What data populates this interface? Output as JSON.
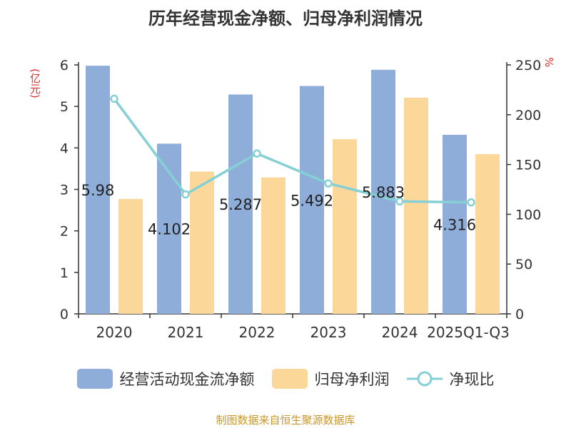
{
  "title": "历年经营现金净额、归母净利润情况",
  "units": {
    "left": "(亿元)",
    "right": "%"
  },
  "source": "制图数据来自恒生聚源数据库",
  "colors": {
    "cash": "#8eadd9",
    "profit": "#fcd79a",
    "ratio": "#84d0d4"
  },
  "chart_data": {
    "type": "bar",
    "categories": [
      "2020",
      "2021",
      "2022",
      "2023",
      "2024",
      "2025Q1-Q3"
    ],
    "series": [
      {
        "name": "经营活动现金流净额",
        "type": "bar",
        "axis": "left",
        "values": [
          5.98,
          4.102,
          5.287,
          5.492,
          5.883,
          4.316
        ],
        "labels": [
          "5.98",
          "4.102",
          "5.287",
          "5.492",
          "5.883",
          "4.316"
        ]
      },
      {
        "name": "归母净利润",
        "type": "bar",
        "axis": "left",
        "values": [
          2.77,
          3.43,
          3.29,
          4.21,
          5.21,
          3.85
        ]
      },
      {
        "name": "净现比",
        "type": "line",
        "axis": "right",
        "values": [
          216,
          120,
          161,
          131,
          113,
          112
        ]
      }
    ],
    "left_axis": {
      "min": 0,
      "max": 6,
      "ticks": [
        "0",
        "1",
        "2",
        "3",
        "4",
        "5",
        "6"
      ]
    },
    "right_axis": {
      "min": 0,
      "max": 250,
      "ticks": [
        "0",
        "50",
        "100",
        "150",
        "200",
        "250"
      ]
    },
    "legend": [
      "经营活动现金流净额",
      "归母净利润",
      "净现比"
    ]
  }
}
